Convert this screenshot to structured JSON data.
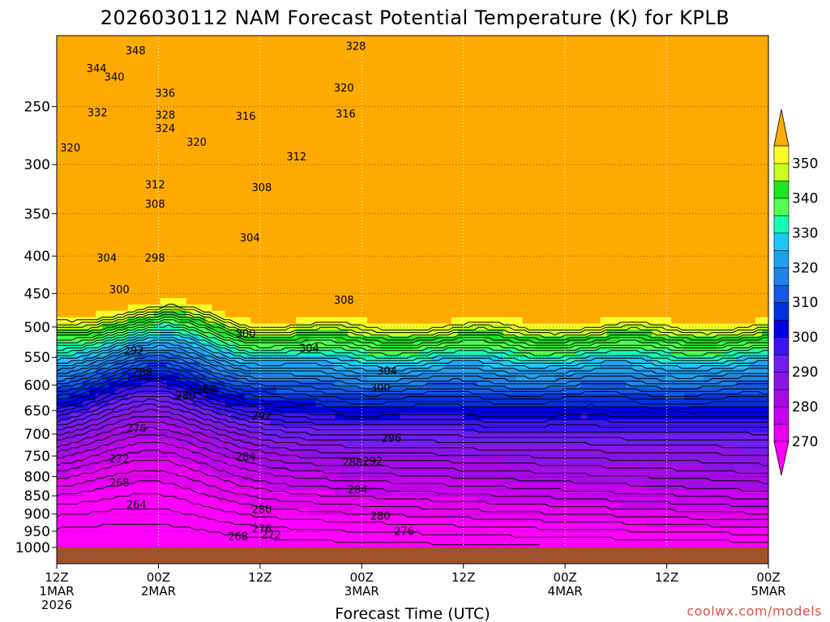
{
  "chart_data": {
    "type": "heatmap",
    "title": "2026030112 NAM Forecast Potential Temperature (K) for KPLB",
    "xlabel": "Forecast Time (UTC)",
    "ylabel": "",
    "x_ticks": [
      {
        "hour": 0,
        "lines": [
          "12Z",
          "1MAR",
          "2026"
        ]
      },
      {
        "hour": 12,
        "lines": [
          "00Z",
          "2MAR"
        ]
      },
      {
        "hour": 24,
        "lines": [
          "12Z"
        ]
      },
      {
        "hour": 36,
        "lines": [
          "00Z",
          "3MAR"
        ]
      },
      {
        "hour": 48,
        "lines": [
          "12Z"
        ]
      },
      {
        "hour": 60,
        "lines": [
          "00Z",
          "4MAR"
        ]
      },
      {
        "hour": 72,
        "lines": [
          "12Z"
        ]
      },
      {
        "hour": 84,
        "lines": [
          "00Z",
          "5MAR"
        ]
      }
    ],
    "xlim": [
      0,
      84
    ],
    "y_ticks": [
      "250",
      "300",
      "350",
      "400",
      "450",
      "500",
      "550",
      "600",
      "650",
      "700",
      "750",
      "800",
      "850",
      "900",
      "950",
      "1000"
    ],
    "ylim": [
      1000,
      200
    ],
    "y_scale": "log",
    "colorbar": {
      "ticks": [
        "270",
        "280",
        "290",
        "300",
        "310",
        "320",
        "330",
        "340",
        "350"
      ],
      "levels": [
        265,
        270,
        275,
        280,
        285,
        290,
        295,
        300,
        305,
        310,
        315,
        320,
        325,
        330,
        335,
        340,
        345,
        350,
        355
      ],
      "colors": [
        "#ff00ff",
        "#e600f0",
        "#c800f0",
        "#a60ae6",
        "#8a14e6",
        "#6e1ef0",
        "#3c14f0",
        "#0000e6",
        "#0032e1",
        "#145ae6",
        "#1e82e6",
        "#1ea0f0",
        "#1ec8f5",
        "#14ffb4",
        "#50ff50",
        "#1ee61e",
        "#c8ff1e",
        "#ffff28",
        "#ffaa00"
      ]
    },
    "contour_interval": 2,
    "ground_color": "#a0522d",
    "contour_labels": [
      {
        "text": "348",
        "hour": 9.3,
        "p": 210
      },
      {
        "text": "344",
        "hour": 4.7,
        "p": 222
      },
      {
        "text": "340",
        "hour": 6.8,
        "p": 228
      },
      {
        "text": "336",
        "hour": 12.8,
        "p": 240
      },
      {
        "text": "332",
        "hour": 4.8,
        "p": 255
      },
      {
        "text": "328",
        "hour": 12.8,
        "p": 257
      },
      {
        "text": "324",
        "hour": 12.8,
        "p": 268
      },
      {
        "text": "320",
        "hour": 16.5,
        "p": 280
      },
      {
        "text": "320",
        "hour": 1.6,
        "p": 285
      },
      {
        "text": "316",
        "hour": 22.3,
        "p": 258
      },
      {
        "text": "312",
        "hour": 11.6,
        "p": 320
      },
      {
        "text": "312",
        "hour": 28.3,
        "p": 293
      },
      {
        "text": "308",
        "hour": 11.6,
        "p": 340
      },
      {
        "text": "308",
        "hour": 24.2,
        "p": 323
      },
      {
        "text": "304",
        "hour": 5.9,
        "p": 403
      },
      {
        "text": "304",
        "hour": 22.8,
        "p": 378
      },
      {
        "text": "300",
        "hour": 7.4,
        "p": 445
      },
      {
        "text": "298",
        "hour": 11.6,
        "p": 403
      },
      {
        "text": "300",
        "hour": 22.3,
        "p": 511
      },
      {
        "text": "292",
        "hour": 9.1,
        "p": 539
      },
      {
        "text": "288",
        "hour": 10.1,
        "p": 577
      },
      {
        "text": "280",
        "hour": 15.2,
        "p": 621
      },
      {
        "text": "288",
        "hour": 17.6,
        "p": 609
      },
      {
        "text": "276",
        "hour": 9.4,
        "p": 689
      },
      {
        "text": "272",
        "hour": 7.4,
        "p": 758
      },
      {
        "text": "268",
        "hour": 7.4,
        "p": 817
      },
      {
        "text": "264",
        "hour": 9.4,
        "p": 875
      },
      {
        "text": "284",
        "hour": 22.3,
        "p": 753
      },
      {
        "text": "292",
        "hour": 24.2,
        "p": 662
      },
      {
        "text": "280",
        "hour": 24.2,
        "p": 888
      },
      {
        "text": "268",
        "hour": 21.4,
        "p": 968
      },
      {
        "text": "276",
        "hour": 24.2,
        "p": 944
      },
      {
        "text": "272",
        "hour": 25.3,
        "p": 962
      },
      {
        "text": "288",
        "hour": 34.9,
        "p": 766
      },
      {
        "text": "284",
        "hour": 35.5,
        "p": 835
      },
      {
        "text": "304",
        "hour": 29.8,
        "p": 535
      },
      {
        "text": "308",
        "hour": 33.9,
        "p": 460
      },
      {
        "text": "316",
        "hour": 34.1,
        "p": 256
      },
      {
        "text": "320",
        "hour": 33.9,
        "p": 236
      },
      {
        "text": "328",
        "hour": 35.3,
        "p": 207
      },
      {
        "text": "300",
        "hour": 38.2,
        "p": 606
      },
      {
        "text": "304",
        "hour": 39.0,
        "p": 575
      },
      {
        "text": "292",
        "hour": 37.3,
        "p": 763
      },
      {
        "text": "296",
        "hour": 39.5,
        "p": 710
      },
      {
        "text": "280",
        "hour": 38.2,
        "p": 907
      },
      {
        "text": "276",
        "hour": 41.0,
        "p": 951
      }
    ]
  },
  "credit": "coolwx.com/models"
}
